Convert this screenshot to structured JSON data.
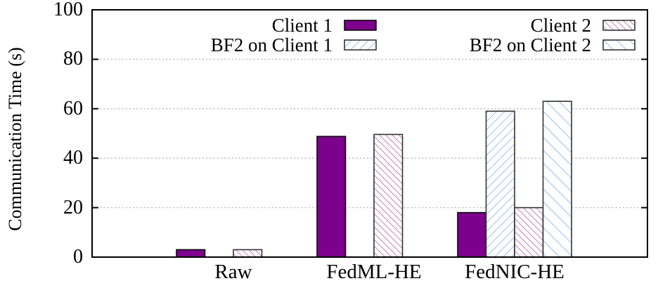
{
  "chart_data": {
    "type": "bar",
    "title": "",
    "categories": [
      "Raw",
      "FedML-HE",
      "FedNIC-HE"
    ],
    "series": [
      {
        "name": "Client 1",
        "values": [
          3,
          48.8,
          18
        ],
        "style": "solid",
        "color": "#7d008c"
      },
      {
        "name": "BF2 on Client 1",
        "values": [
          0,
          0,
          59
        ],
        "style": "hatch-forward",
        "color": "#8cb6ea"
      },
      {
        "name": "Client 2",
        "values": [
          3,
          49.6,
          20
        ],
        "style": "hatch-back",
        "color": "#c06a9a"
      },
      {
        "name": "BF2 on Client 2",
        "values": [
          0,
          0,
          63
        ],
        "style": "hatch-back-sparse",
        "color": "#8cb6ea"
      }
    ],
    "xlabel": "",
    "ylabel": "Communication Time (s)",
    "ylim": [
      0,
      100
    ],
    "yticks": [
      0,
      20,
      40,
      60,
      80,
      100
    ],
    "grid": "horizontal dotted",
    "legend_position": "inside top, two columns"
  },
  "colors": {
    "solid_fill": "#7d008c",
    "blue_hatch": "#8cb6ea",
    "pink_hatch": "#c06a9a",
    "solid_border": "#0a0a0a",
    "hatch_border": "#333333",
    "grid_line": "#b3b3b3",
    "axis_frame": "#000000",
    "background": "#ffffff"
  }
}
